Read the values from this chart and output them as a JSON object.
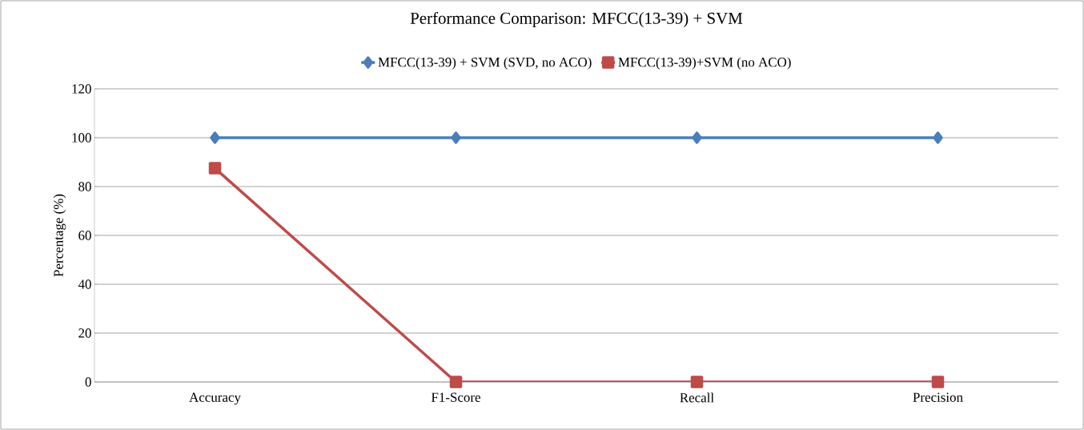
{
  "chart_data": {
    "type": "line",
    "title": "Performance Comparison: MFCC(13-39) + SVM",
    "ylabel": "Percentage (%)",
    "categories": [
      "Accuracy",
      "F1-Score",
      "Recall",
      "Precision"
    ],
    "series": [
      {
        "name": "MFCC(13-39) + SVM (SVD, no ACO)",
        "color": "#4a7ebb",
        "marker": "diamond",
        "values": [
          100,
          100,
          100,
          100
        ]
      },
      {
        "name": "MFCC(13-39)+SVM (no ACO)",
        "color": "#be4b48",
        "marker": "square",
        "values": [
          87.5,
          0,
          0,
          0
        ]
      }
    ],
    "ylim": [
      0,
      120
    ],
    "yticks": [
      0,
      20,
      40,
      60,
      80,
      100,
      120
    ],
    "grid": "y",
    "legend": "top",
    "line_style": "solid"
  }
}
